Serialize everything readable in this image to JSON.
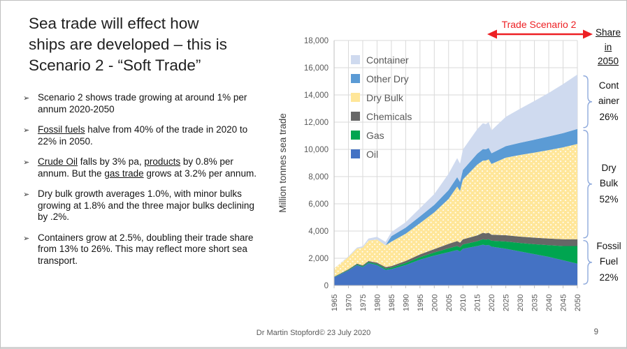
{
  "slide": {
    "title_lines": [
      "Sea trade will effect how",
      "ships are developed – this is",
      "Scenario 2 - “Soft Trade”"
    ],
    "bullets": [
      {
        "segments": [
          {
            "text": "Scenario 2 shows trade growing at around 1% per annum 2020-2050",
            "underline": false
          }
        ]
      },
      {
        "segments": [
          {
            "text": "Fossil fuels",
            "underline": true
          },
          {
            "text": " halve from 40% of the trade in 2020 to 22% in 2050.",
            "underline": false
          }
        ]
      },
      {
        "segments": [
          {
            "text": "Crude Oil",
            "underline": true
          },
          {
            "text": " falls by 3% pa, ",
            "underline": false
          },
          {
            "text": "products",
            "underline": true
          },
          {
            "text": " by 0.8% per annum. But the ",
            "underline": false
          },
          {
            "text": "gas trade",
            "underline": true
          },
          {
            "text": " grows at 3.2% per annum.",
            "underline": false
          }
        ]
      },
      {
        "segments": [
          {
            "text": "Dry bulk growth averages 1.0%, with minor bulks growing at 1.8% and the three major bulks declining by .2%.",
            "underline": false
          }
        ]
      },
      {
        "segments": [
          {
            "text": "Containers grow at 2.5%, doubling their trade share from 13% to 26%. This may reflect more short sea transport.",
            "underline": false
          }
        ]
      }
    ],
    "footer": {
      "credit": "Dr Martin Stopford© 23 July 2020",
      "page_number": "9"
    }
  },
  "annotations": {
    "trade_scenario": {
      "label": "Trade Scenario 2",
      "color": "#ED2024"
    },
    "share_heading_lines": [
      "Share",
      "in",
      "2050"
    ],
    "share_labels": [
      {
        "lines": [
          "Cont",
          "ainer",
          "26%"
        ],
        "covers": [
          "Container"
        ]
      },
      {
        "lines": [
          "Dry",
          "Bulk",
          "52%"
        ],
        "covers": [
          "Dry Bulk",
          "Other Dry"
        ]
      },
      {
        "lines": [
          "Fossil",
          "Fuel",
          "22%"
        ],
        "covers": [
          "Oil",
          "Gas",
          "Chemicals"
        ]
      }
    ],
    "bracket_color": "#8FAADC"
  },
  "chart_data": {
    "type": "area",
    "stacked": true,
    "title": "",
    "ylabel": "Million tonnes sea trade",
    "ylim": [
      0,
      18000
    ],
    "y_tick_step": 2000,
    "grid": true,
    "legend_position": "top-left-inside",
    "x_ticks": [
      1965,
      1970,
      1975,
      1980,
      1985,
      1990,
      1995,
      2000,
      2005,
      2010,
      2015,
      2020,
      2025,
      2030,
      2035,
      2040,
      2045,
      2050
    ],
    "x": [
      1965,
      1970,
      1973,
      1975,
      1977,
      1980,
      1983,
      1985,
      1990,
      1995,
      2000,
      2005,
      2008,
      2009,
      2010,
      2015,
      2017,
      2018,
      2019,
      2020,
      2025,
      2030,
      2035,
      2040,
      2045,
      2050
    ],
    "series": [
      {
        "name": "Oil",
        "color": "#4472C4",
        "values": [
          600,
          1100,
          1500,
          1350,
          1650,
          1500,
          1150,
          1200,
          1500,
          1900,
          2200,
          2450,
          2600,
          2500,
          2700,
          2900,
          3000,
          2950,
          2980,
          2850,
          2700,
          2500,
          2300,
          2100,
          1850,
          1600
        ]
      },
      {
        "name": "Gas",
        "color": "#00A550",
        "values": [
          20,
          40,
          50,
          60,
          70,
          80,
          90,
          100,
          150,
          180,
          220,
          280,
          300,
          300,
          310,
          350,
          400,
          410,
          420,
          440,
          530,
          620,
          730,
          860,
          1050,
          1300
        ]
      },
      {
        "name": "Chemicals",
        "color": "#676767",
        "values": [
          30,
          50,
          60,
          70,
          80,
          100,
          110,
          120,
          150,
          200,
          250,
          330,
          360,
          350,
          380,
          430,
          470,
          470,
          470,
          440,
          460,
          470,
          480,
          490,
          495,
          500
        ]
      },
      {
        "name": "Dry Bulk",
        "color": "#FFE699",
        "pattern": "white-dots",
        "values": [
          600,
          900,
          1100,
          1300,
          1500,
          1700,
          1600,
          1800,
          2000,
          2300,
          2700,
          3300,
          4000,
          3800,
          4400,
          5200,
          5300,
          5350,
          5400,
          5200,
          5700,
          6000,
          6250,
          6500,
          6750,
          7000
        ]
      },
      {
        "name": "Other Dry",
        "color": "#5B9BD5",
        "values": [
          0,
          0,
          0,
          0,
          0,
          0,
          0,
          400,
          450,
          500,
          550,
          650,
          700,
          650,
          700,
          800,
          850,
          820,
          830,
          780,
          850,
          900,
          950,
          1000,
          1050,
          1100
        ]
      },
      {
        "name": "Container",
        "color": "#CFDAEF",
        "values": [
          0,
          50,
          80,
          100,
          150,
          200,
          250,
          300,
          400,
          600,
          800,
          1200,
          1400,
          1350,
          1500,
          1800,
          1900,
          1850,
          1900,
          1690,
          2150,
          2500,
          2850,
          3200,
          3600,
          4000
        ]
      }
    ]
  }
}
